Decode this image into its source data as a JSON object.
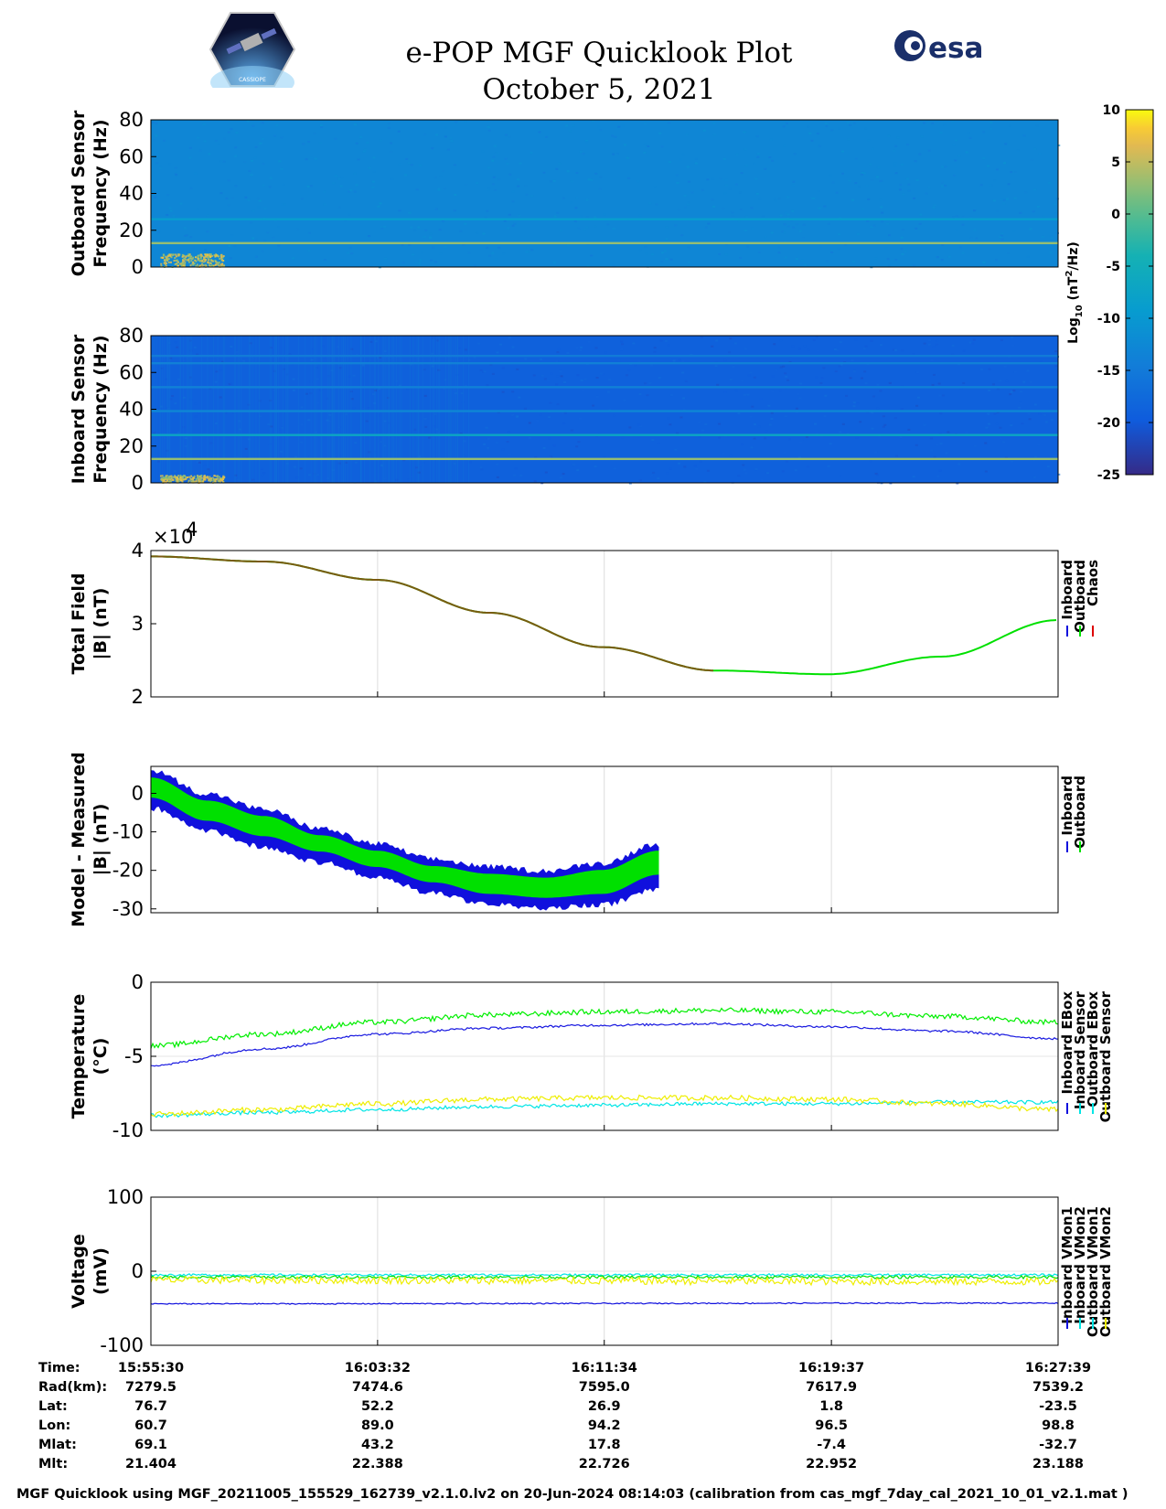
{
  "title_line1": "e-POP MGF Quicklook Plot",
  "title_line2": "October 5, 2021",
  "logo_left_text": "CASSIOPE",
  "logo_right_text": "esa",
  "colors": {
    "inboard": "#1010dd",
    "outboard": "#00e000",
    "chaos": "#dd0000",
    "inboard_sensor": "#1a1ae0",
    "outboard_ebox": "#00ee00",
    "outboard_sensor": "#00e5e5",
    "yellow": "#eeee00",
    "spec_outboard_bg": "#1f84e8",
    "spec_inboard_bg": "#3a40d6"
  },
  "colorbar": {
    "label_html_parts": [
      "Log",
      "10",
      " (nT",
      "2",
      "/Hz)"
    ],
    "ticks": [
      10,
      5,
      0,
      -5,
      -10,
      -15,
      -20,
      -25
    ],
    "tick_labels": [
      "10",
      "5",
      "0",
      "-5",
      "-10",
      "-15",
      "-20",
      "-25"
    ],
    "range": [
      -25,
      10
    ]
  },
  "x_axis": {
    "tick_times": [
      "15:55:30",
      "16:03:32",
      "16:11:34",
      "16:19:37",
      "16:27:39"
    ]
  },
  "chart_data": [
    {
      "type": "heatmap",
      "id": "outboard-spectrogram",
      "ylabel_lines": [
        "Outboard Sensor",
        "Frequency (Hz)"
      ],
      "ylim": [
        0,
        80
      ],
      "yticks": [
        0,
        20,
        40,
        60,
        80
      ],
      "ytick_labels": [
        "0",
        "20",
        "40",
        "60",
        "80"
      ],
      "background_level": -13,
      "tonal_lines_hz": [
        {
          "freq": 13,
          "level": 3
        },
        {
          "freq": 26,
          "level": -9
        }
      ],
      "low_freq_activity": {
        "x_fraction": [
          0.01,
          0.08
        ],
        "freq": [
          0,
          7
        ]
      }
    },
    {
      "type": "heatmap",
      "id": "inboard-spectrogram",
      "ylabel_lines": [
        "Inboard Sensor",
        "Frequency (Hz)"
      ],
      "ylim": [
        0,
        80
      ],
      "yticks": [
        0,
        20,
        40,
        60,
        80
      ],
      "ytick_labels": [
        "0",
        "20",
        "40",
        "60",
        "80"
      ],
      "background_level": -19,
      "tonal_lines_hz": [
        {
          "freq": 13,
          "level": 3
        },
        {
          "freq": 26,
          "level": -7
        },
        {
          "freq": 39,
          "level": -13
        },
        {
          "freq": 52,
          "level": -14
        },
        {
          "freq": 65,
          "level": -14
        },
        {
          "freq": 69,
          "level": -15
        }
      ],
      "low_freq_activity": {
        "x_fraction": [
          0.01,
          0.08
        ],
        "freq": [
          0,
          4
        ]
      }
    },
    {
      "type": "line",
      "id": "total-field",
      "ylabel_lines": [
        "Total Field",
        "|B| (nT)"
      ],
      "ylim": [
        20000,
        40000
      ],
      "yticks": [
        20000,
        30000,
        40000
      ],
      "ytick_labels": [
        "2",
        "3",
        "4"
      ],
      "exponent_label": "×10",
      "exponent_power": "4",
      "x": [
        "15:55:30",
        "15:59:30",
        "16:03:30",
        "16:07:30",
        "16:11:30",
        "16:15:30",
        "16:19:30",
        "16:23:30",
        "16:27:39"
      ],
      "series": [
        {
          "name": "Inboard",
          "values": [
            39200,
            38500,
            36000,
            31500,
            26800,
            23600,
            23100,
            25500,
            30500
          ]
        },
        {
          "name": "Outboard",
          "values": [
            39200,
            38500,
            36000,
            31500,
            26800,
            23600,
            23100,
            25500,
            30500
          ]
        },
        {
          "name": "Chaos",
          "values": [
            39200,
            38500,
            36000,
            31500,
            26800,
            23600,
            23100,
            25500,
            30500
          ]
        }
      ],
      "legend": [
        "Inboard",
        "Outboard",
        "Chaos"
      ],
      "grid": true
    },
    {
      "type": "line",
      "id": "model-minus-measured",
      "ylabel_lines": [
        "Model - Measured",
        "|B| (nT)"
      ],
      "ylim": [
        -31,
        7
      ],
      "yticks": [
        -30,
        -20,
        -10,
        0
      ],
      "ytick_labels": [
        "-30",
        "-20",
        "-10",
        "0"
      ],
      "x": [
        "15:55:30",
        "15:57:30",
        "15:59:30",
        "16:01:30",
        "16:03:30",
        "16:05:30",
        "16:07:30",
        "16:09:30",
        "16:11:30",
        "16:13:30"
      ],
      "series": [
        {
          "name": "Inboard",
          "band_low": [
            -3,
            -9,
            -13,
            -17,
            -21,
            -25,
            -28,
            -29,
            -28,
            -24
          ],
          "band_high": [
            5,
            -1,
            -5,
            -10,
            -14,
            -18,
            -20,
            -21,
            -19,
            -14
          ]
        },
        {
          "name": "Outboard",
          "band_low": [
            -1,
            -7,
            -11,
            -15,
            -19,
            -23,
            -26,
            -27,
            -26,
            -21
          ],
          "band_high": [
            4,
            -2,
            -6,
            -11,
            -15,
            -19,
            -21,
            -22,
            -20,
            -15
          ]
        }
      ],
      "legend": [
        "Inboard",
        "Outboard"
      ],
      "grid": true
    },
    {
      "type": "line",
      "id": "temperature",
      "ylabel_lines": [
        "Temperature",
        "(°C)"
      ],
      "ylim": [
        -10,
        0
      ],
      "yticks": [
        -10,
        -5,
        0
      ],
      "ytick_labels": [
        "-10",
        "-5",
        "0"
      ],
      "x": [
        "15:55:30",
        "15:59:30",
        "16:03:30",
        "16:07:30",
        "16:11:30",
        "16:15:30",
        "16:19:30",
        "16:23:30",
        "16:27:39"
      ],
      "series": [
        {
          "name": "Inboard EBox",
          "values": [
            -4.3,
            -3.5,
            -2.7,
            -2.2,
            -2.0,
            -1.9,
            -2.0,
            -2.3,
            -2.7
          ]
        },
        {
          "name": "Inboard Sensor",
          "values": [
            -5.6,
            -4.5,
            -3.5,
            -3.1,
            -2.9,
            -2.8,
            -3.0,
            -3.3,
            -3.8
          ]
        },
        {
          "name": "Outboard EBox",
          "values": [
            -9.0,
            -8.8,
            -8.6,
            -8.4,
            -8.3,
            -8.2,
            -8.2,
            -8.1,
            -8.1
          ]
        },
        {
          "name": "Outboard Sensor",
          "values": [
            -8.9,
            -8.6,
            -8.2,
            -7.9,
            -7.8,
            -7.8,
            -7.9,
            -8.2,
            -8.6
          ]
        }
      ],
      "legend": [
        "Inboard EBox",
        "Inboard Sensor",
        "Outboard EBox",
        "Outboard Sensor"
      ],
      "grid": true
    },
    {
      "type": "line",
      "id": "voltage",
      "ylabel_lines": [
        "Voltage",
        "(mV)"
      ],
      "ylim": [
        -100,
        100
      ],
      "yticks": [
        -100,
        0,
        100
      ],
      "ytick_labels": [
        "-100",
        "0",
        "100"
      ],
      "x": [
        "15:55:30",
        "16:27:39"
      ],
      "series": [
        {
          "name": "Inboard VMon1",
          "values": [
            -44,
            -43
          ]
        },
        {
          "name": "Inboard VMon2",
          "values": [
            -5,
            -5
          ]
        },
        {
          "name": "Outboard VMon1",
          "values": [
            -8,
            -8
          ]
        },
        {
          "name": "Outboard VMon2",
          "values": [
            -12,
            -14
          ]
        }
      ],
      "legend": [
        "Inboard VMon1",
        "Inboard VMon2",
        "Outboard VMon1",
        "Outboard VMon2"
      ],
      "grid": true
    }
  ],
  "ephemeris": {
    "rows": [
      {
        "label": "Time:",
        "values": [
          "15:55:30",
          "16:03:32",
          "16:11:34",
          "16:19:37",
          "16:27:39"
        ]
      },
      {
        "label": "Rad(km):",
        "values": [
          "7279.5",
          "7474.6",
          "7595.0",
          "7617.9",
          "7539.2"
        ]
      },
      {
        "label": "Lat:",
        "values": [
          "76.7",
          "52.2",
          "26.9",
          "1.8",
          "-23.5"
        ]
      },
      {
        "label": "Lon:",
        "values": [
          "60.7",
          "89.0",
          "94.2",
          "96.5",
          "98.8"
        ]
      },
      {
        "label": "Mlat:",
        "values": [
          "69.1",
          "43.2",
          "17.8",
          "-7.4",
          "-32.7"
        ]
      },
      {
        "label": "Mlt:",
        "values": [
          "21.404",
          "22.388",
          "22.726",
          "22.952",
          "23.188"
        ]
      }
    ]
  },
  "footer": "MGF Quicklook using MGF_20211005_155529_162739_v2.1.0.lv2 on 20-Jun-2024 08:14:03 (calibration from cas_mgf_7day_cal_2021_10_01_v2.1.mat )"
}
